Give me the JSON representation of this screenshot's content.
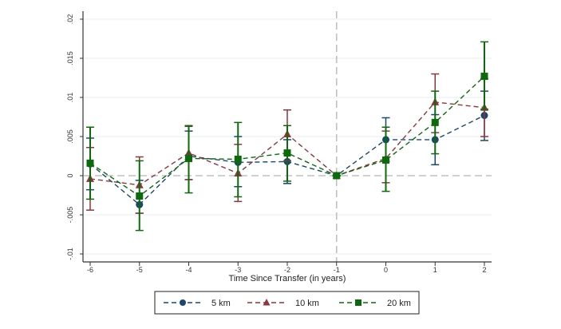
{
  "chart_data": {
    "type": "line",
    "title": "",
    "xlabel": "Time Since Transfer (in years)",
    "ylabel": "",
    "x": [
      -6,
      -5,
      -4,
      -3,
      -2,
      -1,
      0,
      1,
      2
    ],
    "xlim": [
      -6,
      2
    ],
    "ylim": [
      -0.01,
      0.02
    ],
    "x_tick_labels": [
      "-6",
      "-5",
      "-4",
      "-3",
      "-2",
      "-1",
      "0",
      "1",
      "2"
    ],
    "y_ticks": [
      -0.01,
      -0.005,
      0,
      0.005,
      0.01,
      0.015,
      0.02
    ],
    "y_tick_labels": [
      "-.01",
      "-.005",
      "0",
      ".005",
      ".01",
      ".015",
      ".02"
    ],
    "grid": true,
    "reference_lines": {
      "x": -1,
      "y": 0
    },
    "legend_position": "bottom",
    "series": [
      {
        "name": "5 km",
        "color": "#1a476f",
        "marker": "circle",
        "values": [
          0.0015,
          -0.0037,
          0.0025,
          0.0017,
          0.0018,
          0,
          0.0046,
          0.0046,
          0.0077
        ],
        "ci_low": [
          -0.0018,
          -0.0048,
          -0.0005,
          -0.0014,
          -0.001,
          0,
          0.0018,
          0.0014,
          0.0045
        ],
        "ci_high": [
          0.0048,
          -0.0006,
          0.0057,
          0.005,
          0.0046,
          0,
          0.0074,
          0.0078,
          0.0108
        ]
      },
      {
        "name": "10 km",
        "color": "#90353b",
        "marker": "triangle",
        "values": [
          -0.0004,
          -0.0012,
          0.0029,
          0.0003,
          0.0053,
          0,
          0.0022,
          0.0094,
          0.0087
        ],
        "ci_low": [
          -0.0044,
          -0.0048,
          -0.0005,
          -0.0033,
          0.0019,
          0,
          -0.0009,
          0.0055,
          0.005
        ],
        "ci_high": [
          0.0036,
          0.0024,
          0.0063,
          0.004,
          0.0084,
          0,
          0.0057,
          0.013,
          0.0124
        ]
      },
      {
        "name": "20 km",
        "color": "#0b6b0b",
        "marker": "square",
        "values": [
          0.0016,
          -0.0026,
          0.0022,
          0.0021,
          0.0029,
          0,
          0.002,
          0.0068,
          0.0127
        ],
        "ci_low": [
          -0.003,
          -0.007,
          -0.0022,
          -0.0027,
          -0.0007,
          0,
          -0.002,
          0.0028,
          0.0085
        ],
        "ci_high": [
          0.0062,
          0.0019,
          0.0064,
          0.0068,
          0.0064,
          0,
          0.0062,
          0.0108,
          0.0171
        ]
      }
    ]
  }
}
